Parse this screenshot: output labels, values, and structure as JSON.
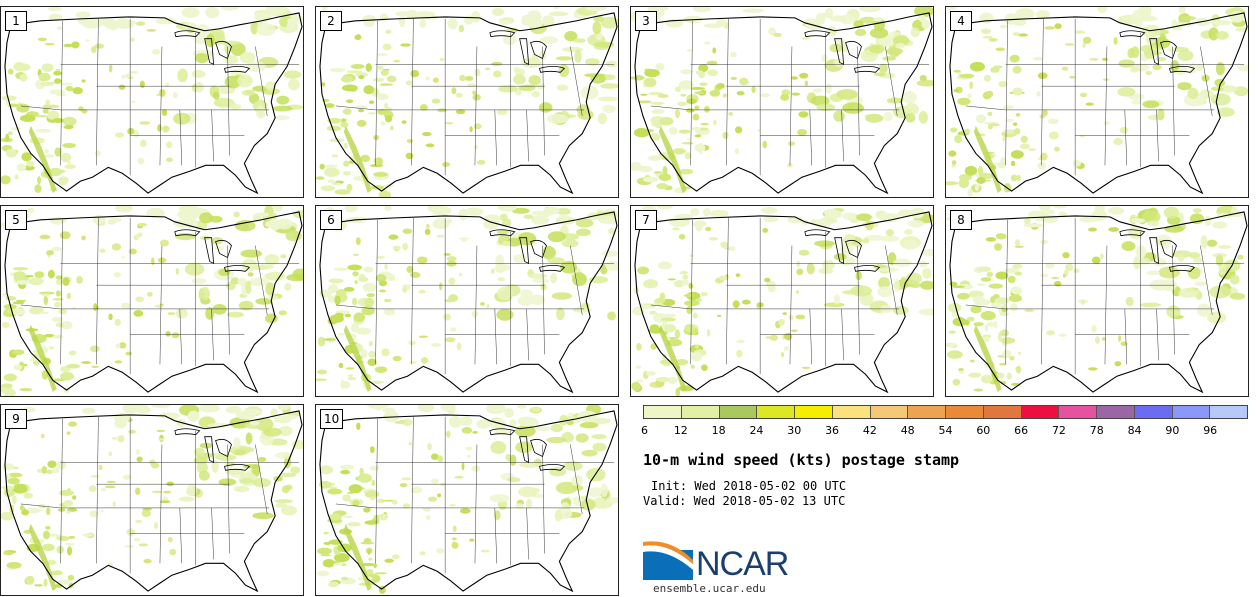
{
  "panels": [
    {
      "label": "1"
    },
    {
      "label": "2"
    },
    {
      "label": "3"
    },
    {
      "label": "4"
    },
    {
      "label": "5"
    },
    {
      "label": "6"
    },
    {
      "label": "7"
    },
    {
      "label": "8"
    },
    {
      "label": "9"
    },
    {
      "label": "10"
    }
  ],
  "legend": {
    "ticks": [
      "6",
      "12",
      "18",
      "24",
      "30",
      "36",
      "42",
      "48",
      "54",
      "60",
      "66",
      "72",
      "78",
      "84",
      "90",
      "96"
    ],
    "colors": [
      "#eef6c8",
      "#e2f0a6",
      "#a9c860",
      "#dce823",
      "#f6ee00",
      "#fbe27c",
      "#f5c878",
      "#eca452",
      "#e98a38",
      "#e0773f",
      "#ee0e42",
      "#e552a0",
      "#9b66a5",
      "#6b6cf2",
      "#8c98f8",
      "#b8c8f8"
    ]
  },
  "title": "10-m wind speed (kts) postage stamp",
  "init": "Init: Wed 2018-05-02 00 UTC",
  "valid": "Valid: Wed 2018-05-02 13 UTC",
  "logo": {
    "text": "NCAR",
    "site": "ensemble.ucar.edu"
  }
}
